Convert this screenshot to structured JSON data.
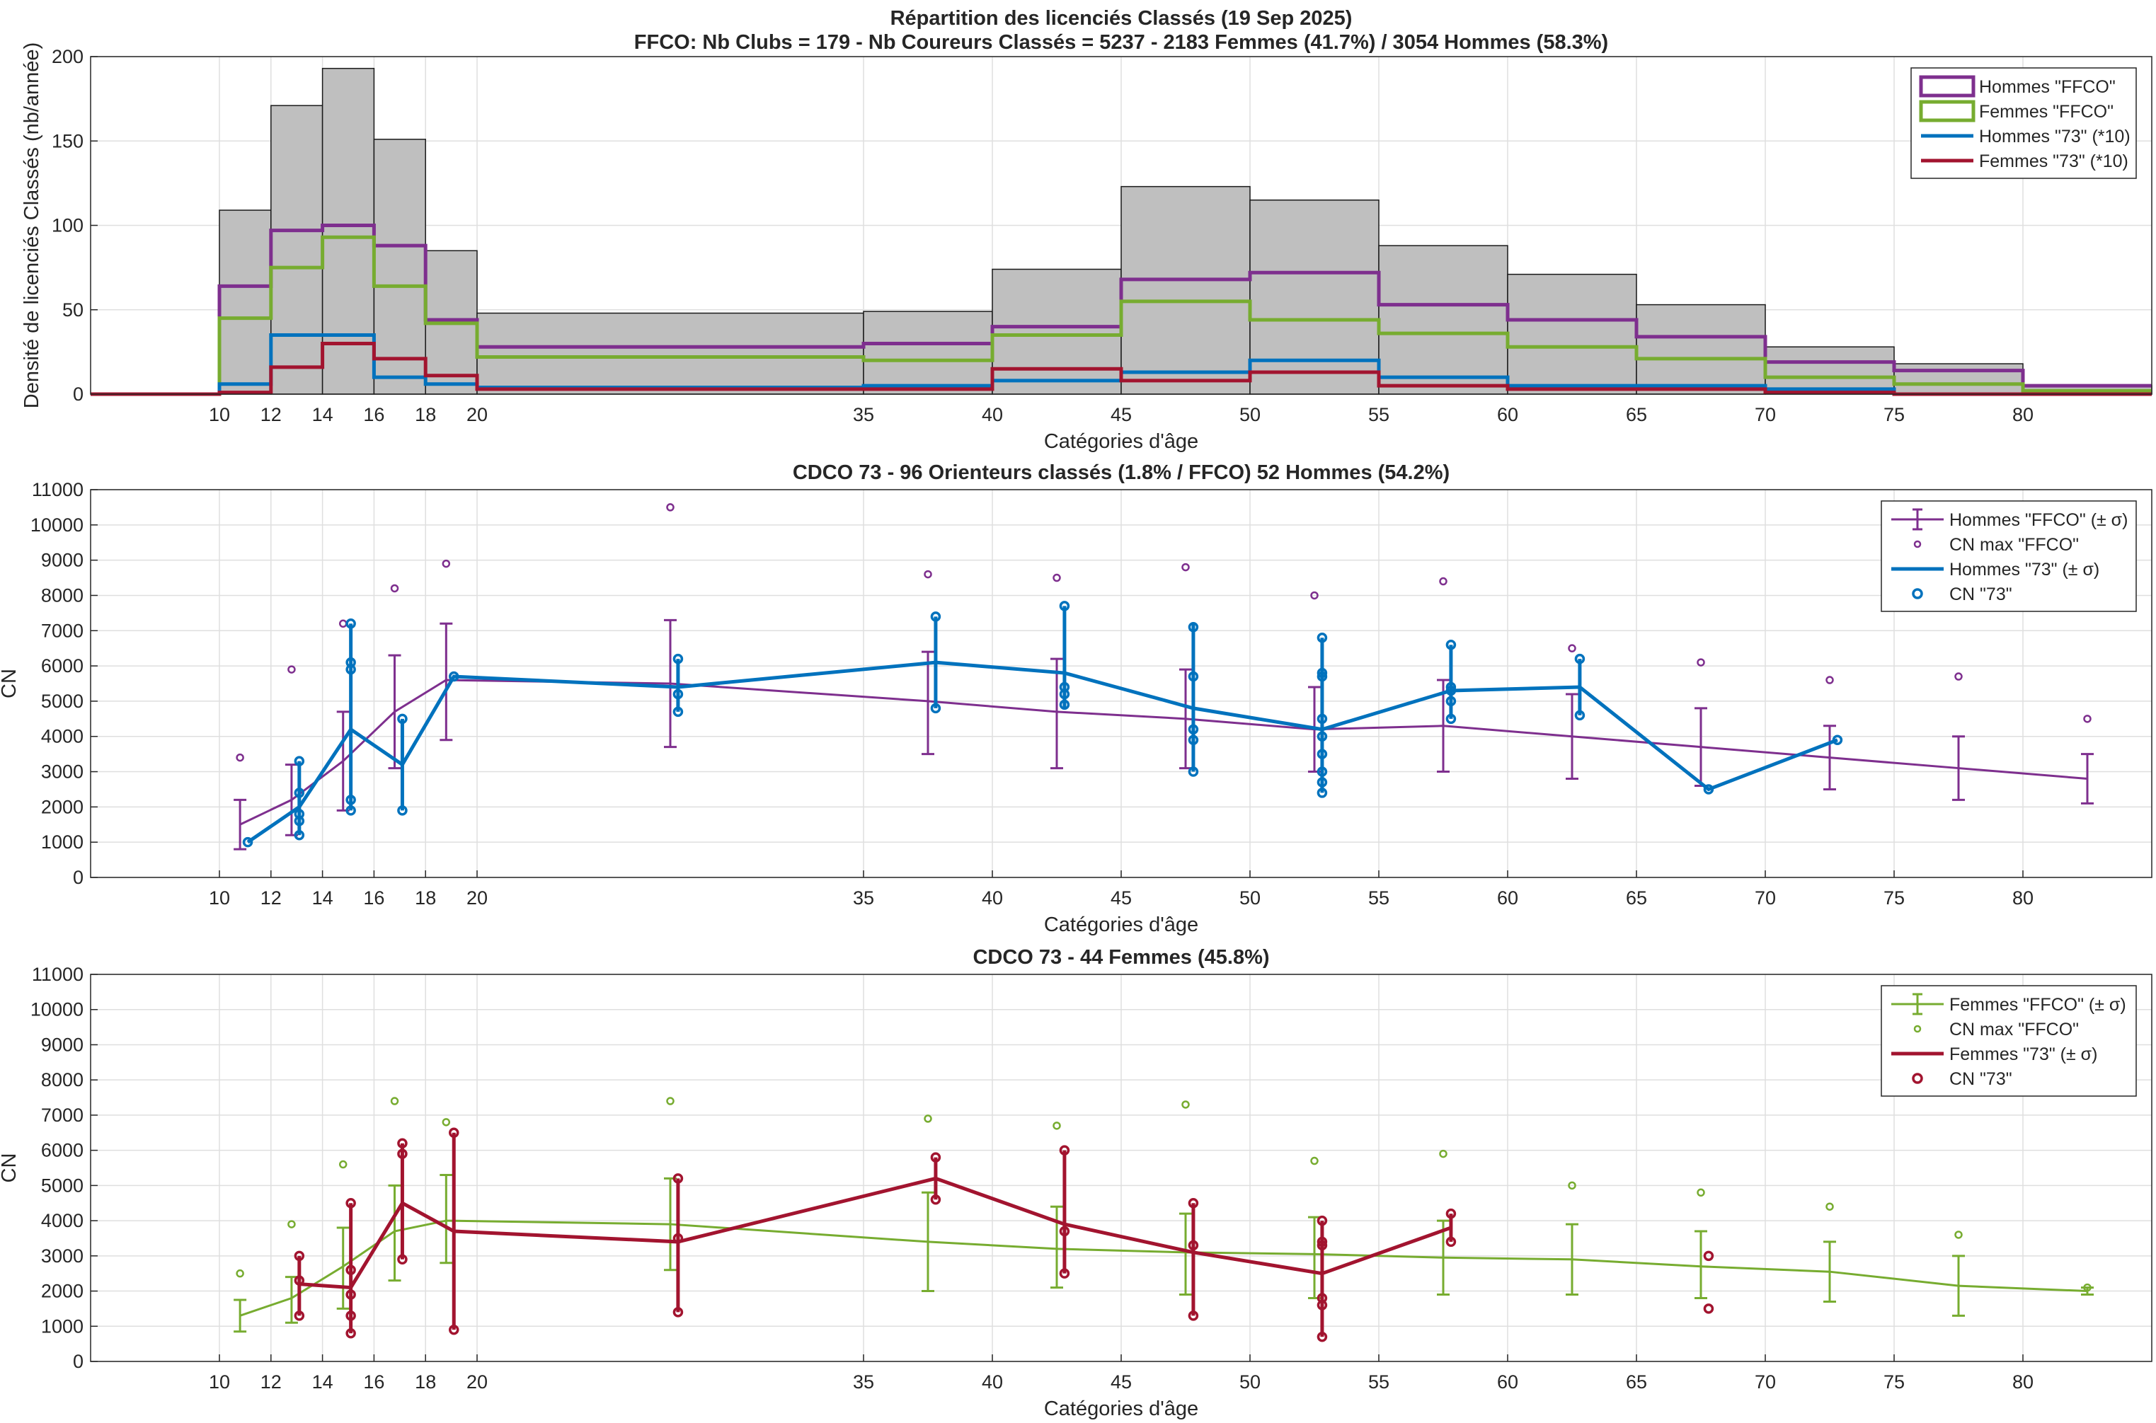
{
  "colors": {
    "purple": "#7E2F8E",
    "green": "#77AC30",
    "blue": "#0072BD",
    "crimson": "#A2142F",
    "gray_fill": "#BFBFBF",
    "grid": "#DFDFDF",
    "axis": "#262626"
  },
  "chart_data": [
    {
      "type": "histogram",
      "title": "Répartition des licenciés Classés (19 Sep 2025)",
      "subtitle": "FFCO: Nb Clubs = 179   -   Nb Coureurs Classés = 5237   -   2183 Femmes (41.7%) / 3054 Hommes (58.3%)",
      "xlabel": "Catégories d'âge",
      "ylabel": "Densité de licenciés Classés (nb/année)",
      "xlim": [
        5,
        85
      ],
      "ylim": [
        0,
        200
      ],
      "x_ticks": [
        10,
        12,
        14,
        16,
        18,
        20,
        35,
        40,
        45,
        50,
        55,
        60,
        65,
        70,
        75,
        80
      ],
      "y_ticks": [
        0,
        50,
        100,
        150,
        200
      ],
      "grid": true,
      "legend_position": "top-right",
      "bin_edges": [
        5,
        10,
        12,
        14,
        16,
        18,
        20,
        35,
        40,
        45,
        50,
        55,
        60,
        65,
        70,
        75,
        80,
        85
      ],
      "total_density": [
        0,
        109,
        171,
        193,
        151,
        85,
        48,
        49,
        74,
        123,
        115,
        88,
        71,
        53,
        28,
        18,
        5
      ],
      "series": [
        {
          "name": "Hommes \"FFCO\"",
          "values": [
            0,
            64,
            97,
            100,
            88,
            44,
            28,
            30,
            40,
            68,
            72,
            53,
            44,
            34,
            19,
            14,
            5
          ]
        },
        {
          "name": "Femmes \"FFCO\"",
          "values": [
            0,
            45,
            75,
            93,
            64,
            42,
            22,
            20,
            35,
            55,
            44,
            36,
            28,
            21,
            10,
            6,
            2
          ]
        },
        {
          "name": "Hommes \"73\" (*10)",
          "values": [
            0,
            6,
            35,
            35,
            10,
            6,
            4,
            5,
            8,
            13,
            20,
            10,
            5,
            5,
            3,
            0,
            0
          ]
        },
        {
          "name": "Femmes \"73\" (*10)",
          "values": [
            0,
            1,
            16,
            30,
            21,
            11,
            3,
            3,
            15,
            8,
            13,
            5,
            3,
            3,
            1,
            0,
            0
          ]
        }
      ]
    },
    {
      "type": "line",
      "title": "CDCO 73  -  96 Orienteurs classés (1.8% / FFCO)  52 Hommes (54.2%)",
      "xlabel": "Catégories d'âge",
      "ylabel": "CN",
      "xlim": [
        5,
        85
      ],
      "ylim": [
        0,
        11000
      ],
      "x_ticks": [
        10,
        12,
        14,
        16,
        18,
        20,
        35,
        40,
        45,
        50,
        55,
        60,
        65,
        70,
        75,
        80
      ],
      "y_ticks": [
        0,
        1000,
        2000,
        3000,
        4000,
        5000,
        6000,
        7000,
        8000,
        9000,
        10000,
        11000
      ],
      "grid": true,
      "legend_position": "top-right",
      "ffco": {
        "name": "Hommes \"FFCO\" (± σ)",
        "x": [
          10.8,
          12.8,
          14.8,
          16.8,
          18.8,
          27.5,
          37.5,
          42.5,
          47.5,
          52.5,
          57.5,
          62.5,
          67.5,
          72.5,
          77.5,
          82.5
        ],
        "y": [
          1500,
          2200,
          3300,
          4700,
          5600,
          5500,
          5000,
          4700,
          4500,
          4200,
          4300,
          4000,
          3700,
          3400,
          3100,
          2800
        ],
        "err_low": [
          800,
          1200,
          1900,
          3100,
          3900,
          3700,
          3500,
          3100,
          3100,
          3000,
          3000,
          2800,
          2600,
          2500,
          2200,
          2100
        ],
        "err_high": [
          2200,
          3200,
          4700,
          6300,
          7200,
          7300,
          6400,
          6200,
          5900,
          5400,
          5600,
          5200,
          4800,
          4300,
          4000,
          3500
        ]
      },
      "ffco_max": {
        "name": "CN max \"FFCO\"",
        "x": [
          10.8,
          12.8,
          14.8,
          16.8,
          18.8,
          27.5,
          37.5,
          42.5,
          47.5,
          52.5,
          57.5,
          62.5,
          67.5,
          72.5,
          77.5,
          82.5
        ],
        "y": [
          3400,
          5900,
          7200,
          8200,
          8900,
          10500,
          8600,
          8500,
          8800,
          8000,
          8400,
          6500,
          6100,
          5600,
          5700,
          4500
        ]
      },
      "club": {
        "name": "Hommes \"73\" (± σ)",
        "x": [
          11.1,
          13.1,
          15.1,
          17.1,
          19.1,
          27.8,
          37.8,
          42.8,
          47.8,
          52.8,
          57.8,
          62.8,
          67.8,
          72.8
        ],
        "y": [
          1000,
          2000,
          4200,
          3200,
          5700,
          5400,
          6100,
          5800,
          4800,
          4200,
          5300,
          5400,
          2500,
          3900
        ],
        "err_low": [
          1000,
          1200,
          1900,
          1900,
          5700,
          4700,
          4800,
          4800,
          3000,
          2400,
          4500,
          4600,
          2500,
          3900
        ],
        "err_high": [
          1000,
          3300,
          7200,
          4500,
          5700,
          6200,
          7400,
          7700,
          7200,
          6800,
          6600,
          6200,
          2500,
          3900
        ]
      },
      "club_points": {
        "name": "CN \"73\"",
        "points": [
          [
            11.1,
            1000
          ],
          [
            13.1,
            1200
          ],
          [
            13.1,
            1600
          ],
          [
            13.1,
            1800
          ],
          [
            13.1,
            2400
          ],
          [
            13.1,
            3300
          ],
          [
            15.1,
            1900
          ],
          [
            15.1,
            2200
          ],
          [
            15.1,
            5900
          ],
          [
            15.1,
            6100
          ],
          [
            15.1,
            7200
          ],
          [
            17.1,
            1900
          ],
          [
            17.1,
            4500
          ],
          [
            19.1,
            5700
          ],
          [
            27.8,
            4700
          ],
          [
            27.8,
            5200
          ],
          [
            27.8,
            6200
          ],
          [
            37.8,
            4800
          ],
          [
            37.8,
            7400
          ],
          [
            42.8,
            4900
          ],
          [
            42.8,
            5200
          ],
          [
            42.8,
            5400
          ],
          [
            42.8,
            7700
          ],
          [
            47.8,
            3000
          ],
          [
            47.8,
            3900
          ],
          [
            47.8,
            4200
          ],
          [
            47.8,
            5700
          ],
          [
            47.8,
            7100
          ],
          [
            52.8,
            2400
          ],
          [
            52.8,
            2700
          ],
          [
            52.8,
            3000
          ],
          [
            52.8,
            3500
          ],
          [
            52.8,
            4000
          ],
          [
            52.8,
            4500
          ],
          [
            52.8,
            5700
          ],
          [
            52.8,
            5800
          ],
          [
            52.8,
            6800
          ],
          [
            57.8,
            4500
          ],
          [
            57.8,
            5000
          ],
          [
            57.8,
            5300
          ],
          [
            57.8,
            5400
          ],
          [
            57.8,
            6600
          ],
          [
            62.8,
            4600
          ],
          [
            62.8,
            6200
          ],
          [
            67.8,
            2500
          ],
          [
            72.8,
            3900
          ]
        ]
      }
    },
    {
      "type": "line",
      "title": "CDCO 73  -  44 Femmes (45.8%)",
      "xlabel": "Catégories d'âge",
      "ylabel": "CN",
      "xlim": [
        5,
        85
      ],
      "ylim": [
        0,
        11000
      ],
      "x_ticks": [
        10,
        12,
        14,
        16,
        18,
        20,
        35,
        40,
        45,
        50,
        55,
        60,
        65,
        70,
        75,
        80
      ],
      "y_ticks": [
        0,
        1000,
        2000,
        3000,
        4000,
        5000,
        6000,
        7000,
        8000,
        9000,
        10000,
        11000
      ],
      "grid": true,
      "legend_position": "top-right",
      "ffco": {
        "name": "Femmes \"FFCO\" (± σ)",
        "x": [
          10.8,
          12.8,
          14.8,
          16.8,
          18.8,
          27.5,
          37.5,
          42.5,
          47.5,
          52.5,
          57.5,
          62.5,
          67.5,
          72.5,
          77.5,
          82.5
        ],
        "y": [
          1300,
          1800,
          2700,
          3700,
          4000,
          3900,
          3400,
          3200,
          3100,
          3050,
          2950,
          2900,
          2700,
          2550,
          2150,
          2000
        ],
        "err_low": [
          850,
          1100,
          1500,
          2300,
          2800,
          2600,
          2000,
          2100,
          1900,
          1800,
          1900,
          1900,
          1800,
          1700,
          1300,
          1900
        ],
        "err_high": [
          1750,
          2400,
          3800,
          5000,
          5300,
          5200,
          4800,
          4400,
          4200,
          4100,
          4000,
          3900,
          3700,
          3400,
          3000,
          2100
        ]
      },
      "ffco_max": {
        "name": "CN max \"FFCO\"",
        "x": [
          10.8,
          12.8,
          14.8,
          16.8,
          18.8,
          27.5,
          37.5,
          42.5,
          47.5,
          52.5,
          57.5,
          62.5,
          67.5,
          72.5,
          77.5,
          82.5
        ],
        "y": [
          2500,
          3900,
          5600,
          7400,
          6800,
          7400,
          6900,
          6700,
          7300,
          5700,
          5900,
          5000,
          4800,
          4400,
          3600,
          2100
        ]
      },
      "club": {
        "name": "Femmes \"73\" (± σ)",
        "x": [
          13.1,
          15.1,
          17.1,
          19.1,
          27.8,
          37.8,
          42.8,
          47.8,
          52.8,
          57.8
        ],
        "y": [
          2200,
          2100,
          4500,
          3700,
          3400,
          5200,
          3900,
          3100,
          2500,
          3800
        ],
        "err_low": [
          1300,
          800,
          2900,
          900,
          1400,
          4600,
          2500,
          1300,
          700,
          3400
        ],
        "err_high": [
          3000,
          4500,
          6200,
          6500,
          5200,
          5800,
          6000,
          4500,
          4000,
          4200
        ]
      },
      "club_points": {
        "name": "CN \"73\"",
        "points": [
          [
            13.1,
            1300
          ],
          [
            13.1,
            2300
          ],
          [
            13.1,
            3000
          ],
          [
            15.1,
            800
          ],
          [
            15.1,
            1300
          ],
          [
            15.1,
            1900
          ],
          [
            15.1,
            2600
          ],
          [
            15.1,
            4500
          ],
          [
            17.1,
            2900
          ],
          [
            17.1,
            5900
          ],
          [
            17.1,
            6200
          ],
          [
            19.1,
            900
          ],
          [
            19.1,
            6500
          ],
          [
            27.8,
            1400
          ],
          [
            27.8,
            3500
          ],
          [
            27.8,
            5200
          ],
          [
            37.8,
            4600
          ],
          [
            37.8,
            5800
          ],
          [
            42.8,
            2500
          ],
          [
            42.8,
            3700
          ],
          [
            42.8,
            6000
          ],
          [
            47.8,
            1300
          ],
          [
            47.8,
            3300
          ],
          [
            47.8,
            4500
          ],
          [
            52.8,
            700
          ],
          [
            52.8,
            1600
          ],
          [
            52.8,
            1800
          ],
          [
            52.8,
            3300
          ],
          [
            52.8,
            3400
          ],
          [
            52.8,
            4000
          ],
          [
            57.8,
            3400
          ],
          [
            57.8,
            4200
          ],
          [
            67.8,
            1500
          ],
          [
            67.8,
            3000
          ]
        ]
      }
    }
  ]
}
